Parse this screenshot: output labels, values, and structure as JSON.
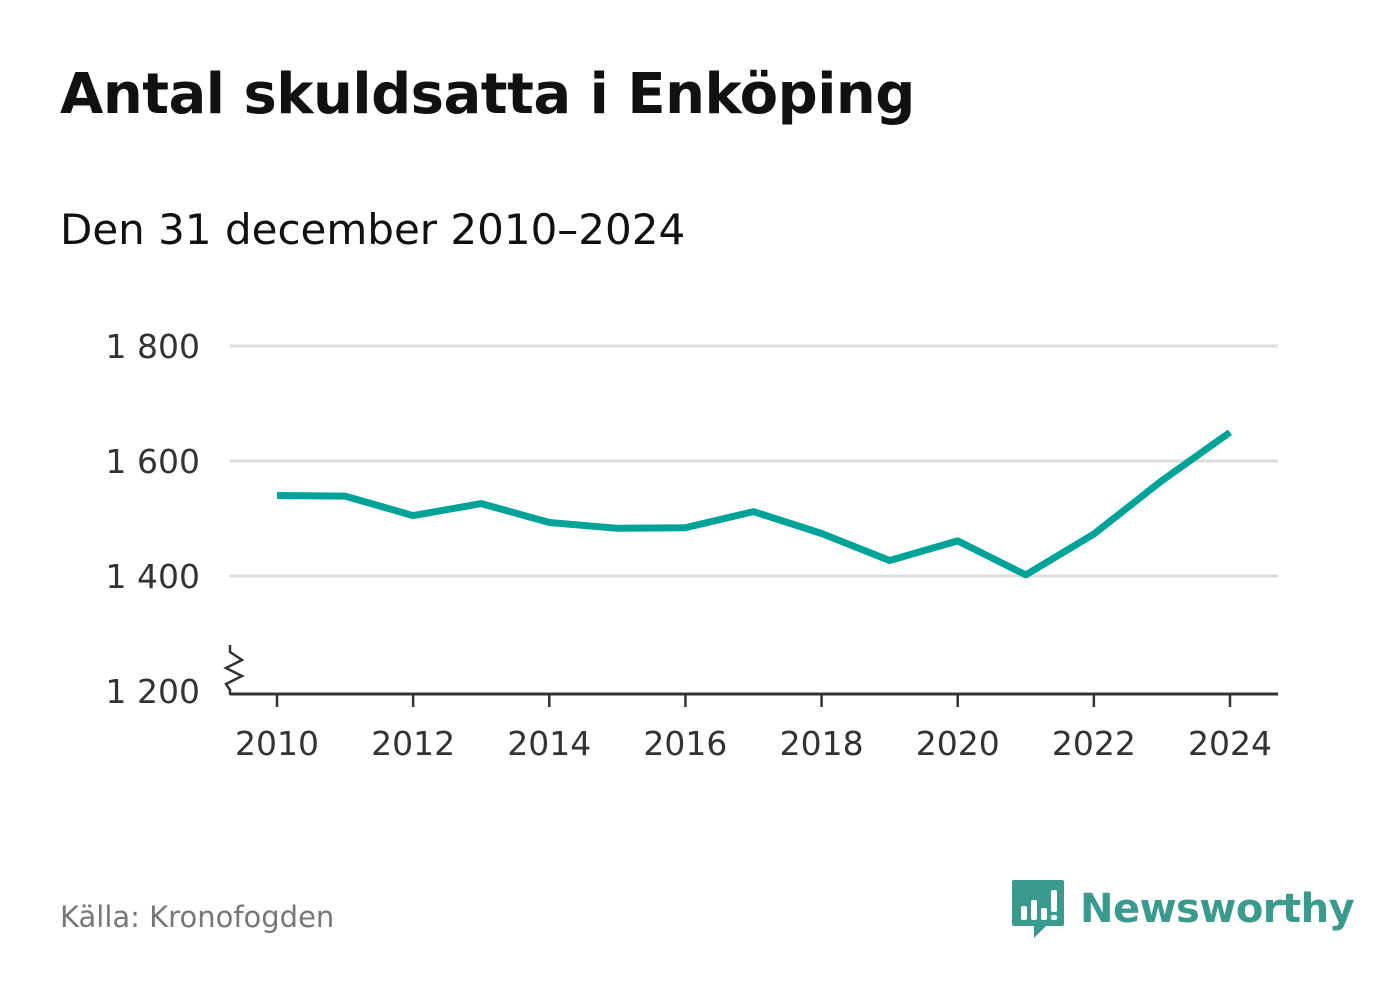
{
  "title": "Antal skuldsatta i Enköping",
  "subtitle": "Den 31 december 2010–2024",
  "source": "Källa: Kronofogden",
  "brand": {
    "name": "Newsworthy",
    "icon": "newsworthy-logo-icon",
    "color": "#3a9a8e"
  },
  "colors": {
    "line": "#00a398",
    "grid": "#dddddd",
    "axis": "#333333"
  },
  "chart_data": {
    "type": "line",
    "title": "Antal skuldsatta i Enköping",
    "xlabel": "",
    "ylabel": "",
    "x": [
      2010,
      2011,
      2012,
      2013,
      2014,
      2015,
      2016,
      2017,
      2018,
      2019,
      2020,
      2021,
      2022,
      2023,
      2024
    ],
    "series": [
      {
        "name": "Antal skuldsatta",
        "values": [
          1540,
          1539,
          1505,
          1526,
          1493,
          1483,
          1484,
          1512,
          1474,
          1427,
          1461,
          1402,
          1473,
          1566,
          1650
        ]
      }
    ],
    "xticks": [
      2010,
      2012,
      2014,
      2016,
      2018,
      2020,
      2022,
      2024
    ],
    "xtick_labels": [
      "2010",
      "2012",
      "2014",
      "2016",
      "2018",
      "2020",
      "2022",
      "2024"
    ],
    "yticks": [
      1200,
      1400,
      1600,
      1800
    ],
    "ytick_labels": [
      "1 200",
      "1 400",
      "1 600",
      "1 800"
    ],
    "ylim": [
      1200,
      1800
    ],
    "xlim": [
      2010,
      2024
    ],
    "axis_break": true,
    "grid": true
  }
}
